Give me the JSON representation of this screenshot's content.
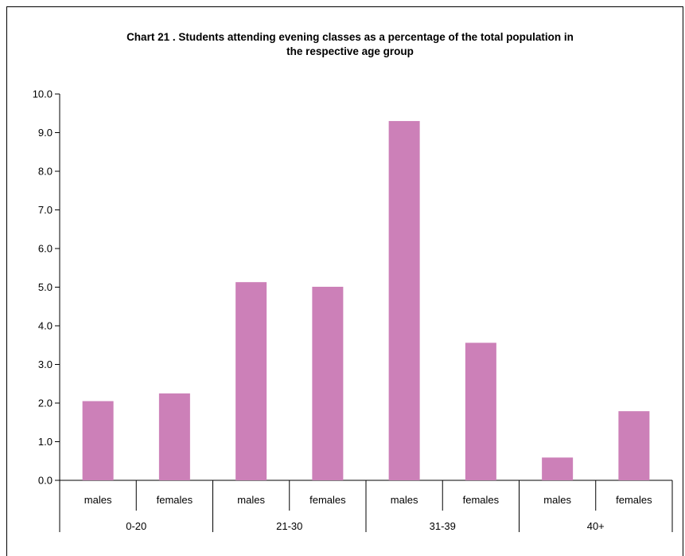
{
  "chart_data": {
    "type": "bar",
    "title_line1": "Chart 21 .  Students attending evening classes as a percentage of the total population in",
    "title_line2": "the respective age group",
    "xlabel": "",
    "ylabel": "",
    "ylim": [
      0,
      10
    ],
    "yticks": [
      "0.0",
      "1.0",
      "2.0",
      "3.0",
      "4.0",
      "5.0",
      "6.0",
      "7.0",
      "8.0",
      "9.0",
      "10.0"
    ],
    "grid": false,
    "legend": "none",
    "bar_color": "#cc80b8",
    "groups": [
      "0-20",
      "21-30",
      "31-39",
      "40+"
    ],
    "categories": [
      "males",
      "females",
      "males",
      "females",
      "males",
      "females",
      "males",
      "females"
    ],
    "values": [
      2.05,
      2.25,
      5.13,
      5.01,
      9.3,
      3.56,
      0.59,
      1.79
    ]
  }
}
